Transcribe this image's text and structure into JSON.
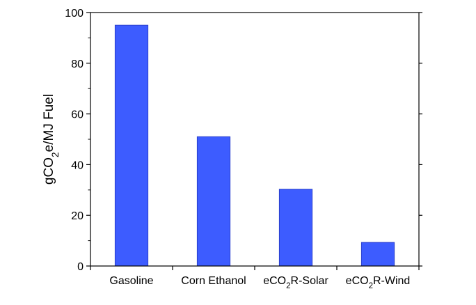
{
  "chart_data": {
    "type": "bar",
    "categories": [
      [
        "Gasoline",
        "",
        ""
      ],
      [
        "Corn Ethanol",
        "",
        ""
      ],
      [
        "eCO",
        "2",
        "R-Solar"
      ],
      [
        "eCO",
        "2",
        "R-Wind"
      ]
    ],
    "values": [
      95,
      51,
      30.3,
      9.3
    ],
    "ylabel": [
      "gCO",
      "2",
      "e/MJ Fuel"
    ],
    "ylim": [
      0,
      100
    ],
    "yticks": [
      0,
      20,
      40,
      60,
      80,
      100
    ],
    "bar_color": "#3d5cff",
    "bar_edge_color": "#2a3fcc",
    "grid": false
  }
}
